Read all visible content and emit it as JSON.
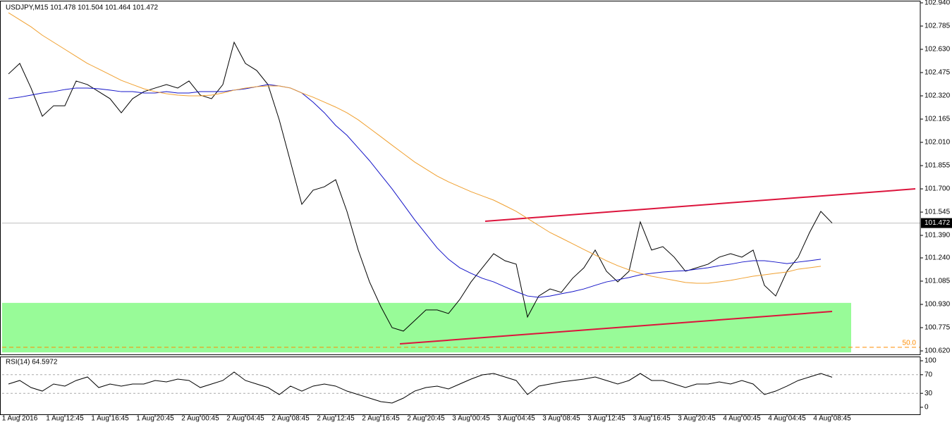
{
  "chart_data": [
    {
      "type": "line",
      "title": "USDJPY,M15  101.478 101.504 101.464 101.472",
      "categories": [
        null,
        "1 Aug 2016",
        null,
        null,
        null,
        "1 Aug 12:45",
        null,
        null,
        null,
        "1 Aug 16:45",
        null,
        null,
        null,
        "1 Aug 20:45",
        null,
        null,
        null,
        "2 Aug 00:45",
        null,
        null,
        null,
        "2 Aug 04:45",
        null,
        null,
        null,
        "2 Aug 08:45",
        null,
        null,
        null,
        "2 Aug 12:45",
        null,
        null,
        null,
        "2 Aug 16:45",
        null,
        null,
        null,
        "2 Aug 20:45",
        null,
        null,
        null,
        "3 Aug 00:45",
        null,
        null,
        null,
        "3 Aug 04:45",
        null,
        null,
        null,
        "3 Aug 08:45",
        null,
        null,
        null,
        "3 Aug 12:45",
        null,
        null,
        null,
        "3 Aug 16:45",
        null,
        null,
        null,
        "3 Aug 20:45",
        null,
        null,
        null,
        "4 Aug 00:45",
        null,
        null,
        null,
        "4 Aug 04:45",
        null,
        null,
        null,
        "4 Aug 08:45"
      ],
      "series": [
        {
          "color": "#000000",
          "values": [
            102.466,
            102.536,
            102.372,
            102.184,
            102.254,
            102.254,
            102.419,
            102.395,
            102.348,
            102.301,
            102.207,
            102.301,
            102.348,
            102.372,
            102.395,
            102.372,
            102.419,
            102.325,
            102.301,
            102.395,
            102.677,
            102.536,
            102.489,
            102.395,
            102.16,
            101.879,
            101.597,
            101.691,
            101.714,
            101.761,
            101.55,
            101.292,
            101.08,
            100.916,
            100.775,
            100.752,
            100.822,
            100.893,
            100.893,
            100.869,
            100.963,
            101.08,
            101.174,
            101.268,
            101.221,
            101.198,
            100.846,
            100.986,
            101.033,
            101.01,
            101.104,
            101.174,
            101.292,
            101.151,
            101.08,
            101.151,
            101.48,
            101.292,
            101.315,
            101.245,
            101.151,
            101.174,
            101.198,
            101.245,
            101.268,
            101.245,
            101.292,
            101.057,
            100.986,
            101.151,
            101.245,
            101.409,
            101.55,
            101.472
          ]
        },
        {
          "color": "#1414c8",
          "values": [
            102.301,
            102.311,
            102.325,
            102.339,
            102.348,
            102.362,
            102.372,
            102.372,
            102.367,
            102.358,
            102.348,
            102.348,
            102.339,
            102.339,
            102.348,
            102.339,
            102.339,
            102.348,
            102.348,
            102.348,
            102.358,
            102.367,
            102.381,
            102.395,
            102.386,
            102.372,
            102.339,
            102.278,
            102.207,
            102.123,
            102.057,
            101.973,
            101.888,
            101.794,
            101.7,
            101.597,
            101.494,
            101.4,
            101.306,
            101.231,
            101.174,
            101.137,
            101.104,
            101.08,
            101.047,
            101.015,
            100.986,
            100.977,
            100.986,
            101.001,
            101.015,
            101.033,
            101.057,
            101.08,
            101.094,
            101.109,
            101.127,
            101.137,
            101.146,
            101.151,
            101.155,
            101.165,
            101.174,
            101.188,
            101.198,
            101.212,
            101.221,
            101.221,
            101.212,
            101.202,
            101.212,
            101.221,
            101.231,
            null
          ]
        },
        {
          "color": "#f0a030",
          "values": [
            102.874,
            102.827,
            102.78,
            102.724,
            102.677,
            102.63,
            102.583,
            102.536,
            102.499,
            102.461,
            102.423,
            102.395,
            102.367,
            102.348,
            102.334,
            102.325,
            102.32,
            102.32,
            102.325,
            102.339,
            102.358,
            102.372,
            102.381,
            102.386,
            102.386,
            102.372,
            102.339,
            102.311,
            102.278,
            102.245,
            102.207,
            102.16,
            102.104,
            102.048,
            101.991,
            101.935,
            101.879,
            101.832,
            101.785,
            101.747,
            101.714,
            101.681,
            101.653,
            101.625,
            101.588,
            101.55,
            101.503,
            101.456,
            101.409,
            101.372,
            101.334,
            101.296,
            101.259,
            101.221,
            101.188,
            101.16,
            101.137,
            101.118,
            101.104,
            101.09,
            101.076,
            101.071,
            101.071,
            101.08,
            101.09,
            101.104,
            101.118,
            101.127,
            101.137,
            101.146,
            101.165,
            101.174,
            101.184,
            null
          ]
        }
      ],
      "ylim": [
        100.62,
        102.94
      ],
      "yticks": [
        {
          "value": 102.94,
          "label": "102.940"
        },
        102.785,
        {
          "value": 102.63,
          "label": "102.630"
        },
        102.475,
        {
          "value": 102.32,
          "label": "102.320"
        },
        102.165,
        {
          "value": 102.01,
          "label": "102.010"
        },
        101.855,
        {
          "value": 101.7,
          "label": "101.700"
        },
        101.545,
        {
          "value": 101.39,
          "label": "101.390"
        },
        {
          "value": 101.24,
          "label": "101.240"
        },
        101.085,
        {
          "value": 100.93,
          "label": "100.930"
        },
        100.775,
        {
          "value": 100.62,
          "label": "100.620"
        }
      ],
      "last_price": {
        "value": 101.472,
        "label": "101.472"
      },
      "zone": {
        "from": 100.61,
        "to": 100.94,
        "color": "#98fb98"
      },
      "levels": [
        {
          "label": "50.0",
          "value": 100.644,
          "color": "#ff8c00"
        }
      ],
      "trendlines": [
        {
          "color": "#dc143c",
          "points": [
            [
              42.25,
              101.484
            ],
            [
              80.375,
              101.7
            ]
          ]
        },
        {
          "color": "#dc143c",
          "points": [
            [
              34.69,
              100.667
            ],
            [
              73,
              100.883
            ]
          ]
        }
      ]
    },
    {
      "type": "line",
      "title": "RSI(14) 64.5972",
      "color": "#000000",
      "values": [
        50.0,
        57.6,
        42.4,
        34.8,
        50.0,
        45.5,
        57.6,
        65.2,
        42.4,
        50.0,
        45.5,
        50.0,
        50.0,
        57.6,
        54.5,
        60.6,
        57.6,
        42.4,
        50.0,
        57.6,
        75.8,
        57.6,
        50.0,
        42.4,
        27.3,
        45.5,
        34.8,
        45.5,
        50.0,
        45.5,
        34.8,
        27.3,
        19.7,
        12.1,
        9.1,
        19.7,
        34.8,
        42.4,
        45.5,
        39.4,
        50.0,
        60.6,
        69.7,
        72.7,
        65.2,
        57.6,
        27.3,
        45.5,
        50.0,
        54.5,
        57.6,
        60.6,
        65.2,
        57.6,
        50.0,
        57.6,
        72.7,
        57.6,
        57.6,
        50.0,
        42.4,
        50.0,
        50.0,
        54.5,
        50.0,
        57.6,
        50.0,
        27.3,
        34.8,
        45.5,
        57.6,
        65.2,
        72.7,
        64.5972
      ],
      "ylim": [
        0,
        100
      ],
      "yticks": [
        100,
        70,
        30,
        0
      ],
      "levels": [
        70,
        30
      ]
    }
  ]
}
